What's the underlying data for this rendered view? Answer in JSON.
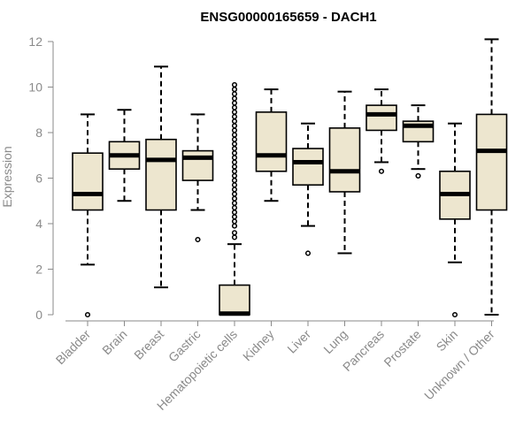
{
  "chart_data": {
    "type": "boxplot",
    "title": "ENSG00000165659 - DACH1",
    "xlabel": "",
    "ylabel": "Expression",
    "ylim": [
      0,
      12
    ],
    "yticks": [
      0,
      2,
      4,
      6,
      8,
      10,
      12
    ],
    "box_fill": "#ede6cf",
    "categories": [
      "Bladder",
      "Brain",
      "Breast",
      "Gastric",
      "Hematopoietic cells",
      "Kidney",
      "Liver",
      "Lung",
      "Pancreas",
      "Prostate",
      "Skin",
      "Unknown / Other"
    ],
    "boxes": [
      {
        "category": "Bladder",
        "whisker_low": 2.2,
        "q1": 4.6,
        "median": 5.3,
        "q3": 7.1,
        "whisker_high": 8.8,
        "outliers": [
          0.0
        ]
      },
      {
        "category": "Brain",
        "whisker_low": 5.0,
        "q1": 6.4,
        "median": 7.0,
        "q3": 7.6,
        "whisker_high": 9.0,
        "outliers": []
      },
      {
        "category": "Breast",
        "whisker_low": 1.2,
        "q1": 4.6,
        "median": 6.8,
        "q3": 7.7,
        "whisker_high": 10.9,
        "outliers": []
      },
      {
        "category": "Gastric",
        "whisker_low": 4.6,
        "q1": 5.9,
        "median": 6.9,
        "q3": 7.2,
        "whisker_high": 8.8,
        "outliers": [
          3.3
        ]
      },
      {
        "category": "Hematopoietic cells",
        "whisker_low": 0.0,
        "q1": 0.0,
        "median": 0.05,
        "q3": 1.3,
        "whisker_high": 3.1,
        "outliers": [
          3.4,
          3.6,
          3.9,
          4.1,
          4.3,
          4.5,
          4.7,
          4.9,
          5.1,
          5.3,
          5.5,
          5.7,
          5.9,
          6.1,
          6.3,
          6.5,
          6.7,
          6.9,
          7.1,
          7.3,
          7.5,
          7.7,
          7.9,
          8.1,
          8.3,
          8.5,
          8.7,
          8.9,
          9.1,
          9.3,
          9.5,
          9.7,
          9.9,
          10.1
        ]
      },
      {
        "category": "Kidney",
        "whisker_low": 5.0,
        "q1": 6.3,
        "median": 7.0,
        "q3": 8.9,
        "whisker_high": 9.9,
        "outliers": []
      },
      {
        "category": "Liver",
        "whisker_low": 3.9,
        "q1": 5.7,
        "median": 6.7,
        "q3": 7.3,
        "whisker_high": 8.4,
        "outliers": [
          2.7
        ]
      },
      {
        "category": "Lung",
        "whisker_low": 2.7,
        "q1": 5.4,
        "median": 6.3,
        "q3": 8.2,
        "whisker_high": 9.8,
        "outliers": []
      },
      {
        "category": "Pancreas",
        "whisker_low": 6.7,
        "q1": 8.1,
        "median": 8.8,
        "q3": 9.2,
        "whisker_high": 9.9,
        "outliers": [
          6.3
        ]
      },
      {
        "category": "Prostate",
        "whisker_low": 6.4,
        "q1": 7.6,
        "median": 8.3,
        "q3": 8.5,
        "whisker_high": 9.2,
        "outliers": [
          6.1
        ]
      },
      {
        "category": "Skin",
        "whisker_low": 2.3,
        "q1": 4.2,
        "median": 5.3,
        "q3": 6.3,
        "whisker_high": 8.4,
        "outliers": [
          0.0
        ]
      },
      {
        "category": "Unknown / Other",
        "whisker_low": 0.0,
        "q1": 4.6,
        "median": 7.2,
        "q3": 8.8,
        "whisker_high": 12.1,
        "outliers": []
      }
    ]
  }
}
